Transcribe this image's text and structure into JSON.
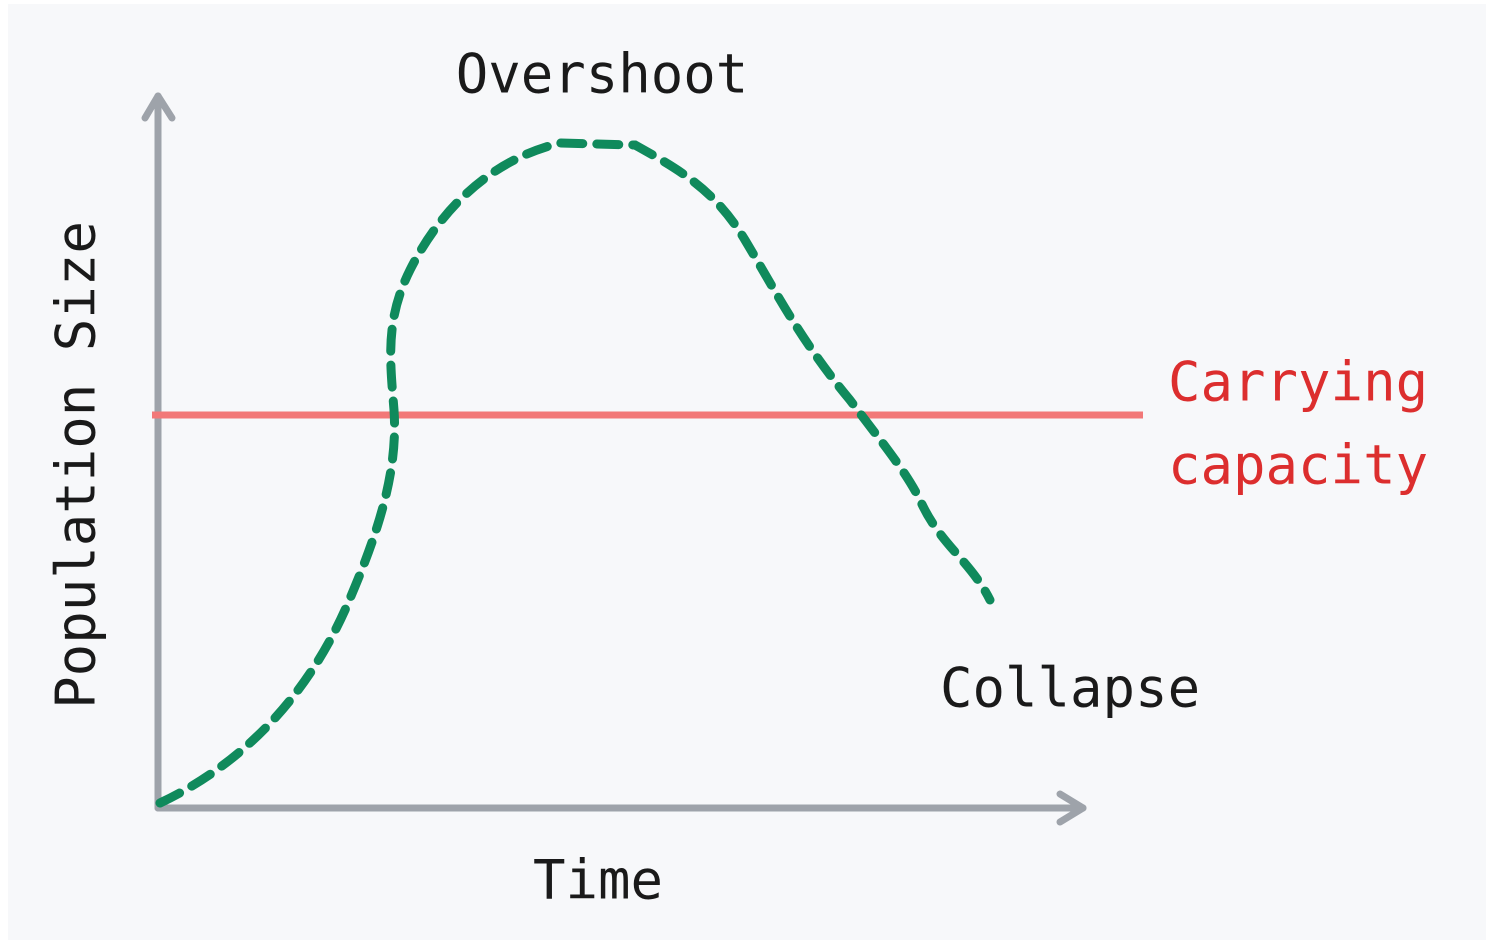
{
  "title": "Overshoot",
  "carrying_capacity_label": [
    "Carrying",
    "capacity"
  ],
  "collapse_label": "Collapse",
  "x_axis_label": "Time",
  "y_axis_label": "Population Size"
}
